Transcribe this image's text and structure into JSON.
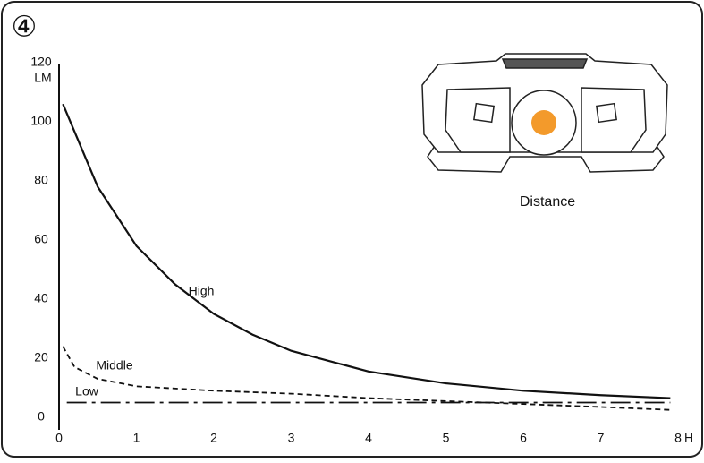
{
  "chart_data": {
    "type": "line",
    "badge": "④",
    "x_label": "H",
    "y_label": "LM",
    "image_caption": "Distance",
    "xlim": [
      0,
      8
    ],
    "xticks": [
      0,
      1,
      2,
      3,
      4,
      5,
      6,
      7,
      8
    ],
    "ylim": [
      0,
      120
    ],
    "yticks": [
      0,
      20,
      40,
      60,
      80,
      100,
      120
    ],
    "series": [
      {
        "name": "High",
        "color": "#111111",
        "style": "solid",
        "x": [
          0.05,
          0.5,
          1,
          1.5,
          2,
          2.5,
          3,
          4,
          5,
          6,
          7,
          7.9
        ],
        "values": [
          106,
          78,
          58,
          45,
          35,
          28,
          22.5,
          15.5,
          11.5,
          9,
          7.5,
          6.5
        ]
      },
      {
        "name": "Middle",
        "color": "#111111",
        "style": "dashed",
        "x": [
          0.05,
          0.2,
          0.5,
          1,
          2,
          3,
          4,
          5,
          6,
          7,
          7.9
        ],
        "values": [
          24,
          17,
          13,
          10.5,
          9,
          8,
          6.5,
          5.5,
          4.5,
          3.5,
          2.5
        ]
      },
      {
        "name": "Low",
        "color": "#111111",
        "style": "dashdot",
        "x": [
          0.1,
          7.9
        ],
        "values": [
          5,
          5
        ]
      }
    ]
  }
}
